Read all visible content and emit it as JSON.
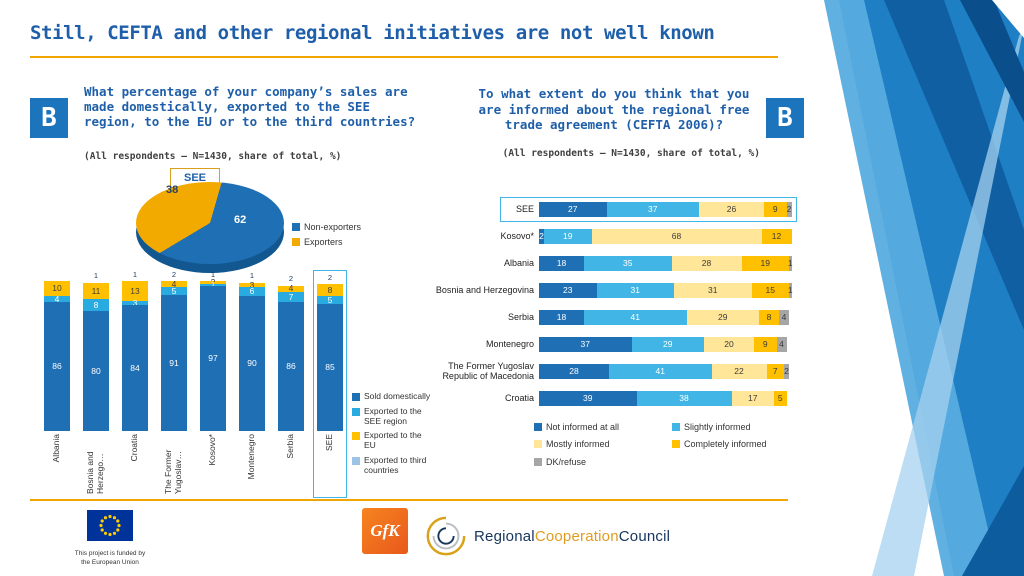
{
  "title": "Still, CEFTA and other regional initiatives are not well known",
  "badges": {
    "left": "B",
    "right": "B"
  },
  "left_panel": {
    "question": "What percentage of your company’s sales are made domestically, exported to the SEE region, to the EU or to the third countries?",
    "subtitle": "(All respondents – N=1430, share of total, %)",
    "see_tag": "SEE"
  },
  "right_panel": {
    "question": "To what extent do you think that you are informed about the regional free trade agreement (CEFTA 2006)?",
    "subtitle": "(All respondents – N=1430, share of total, %)"
  },
  "chart_data": [
    {
      "id": "see_exporters_pie",
      "type": "pie",
      "labels": [
        "Non-exporters",
        "Exporters"
      ],
      "values": [
        62,
        38
      ],
      "colors": [
        "#1F6FB5",
        "#F2A900"
      ],
      "title": "SEE",
      "legend_position": "right"
    },
    {
      "id": "sales_structure_by_country",
      "type": "bar",
      "stacked": true,
      "categories": [
        "Albania",
        "Bosnia and Herzego…",
        "Croatia",
        "The Former Yugoslav…",
        "Kosovo*",
        "Montenegro",
        "Serbia",
        "SEE"
      ],
      "series": [
        {
          "name": "Sold domestically",
          "color": "#1F6FB5",
          "values": [
            86,
            80,
            84,
            91,
            97,
            90,
            86,
            85
          ]
        },
        {
          "name": "Exported to the SEE region",
          "color": "#29ABE2",
          "values": [
            4,
            8,
            3,
            5,
            1,
            6,
            7,
            5
          ]
        },
        {
          "name": "Exported to the EU",
          "color": "#FFC000",
          "values": [
            10,
            11,
            13,
            4,
            2,
            3,
            4,
            8
          ]
        },
        {
          "name": "Exported to third countries",
          "color": "#9DC3E6",
          "values": [
            0,
            1,
            1,
            2,
            1,
            1,
            2,
            2
          ]
        }
      ],
      "ylim": [
        0,
        100
      ],
      "highlight_category": "SEE",
      "legend_position": "right"
    },
    {
      "id": "cefta_awareness_by_country",
      "type": "bar",
      "orientation": "horizontal",
      "stacked": true,
      "categories": [
        "SEE",
        "Kosovo*",
        "Albania",
        "Bosnia and Herzegovina",
        "Serbia",
        "Montenegro",
        "The Former Yugoslav Republic of Macedonia",
        "Croatia"
      ],
      "series": [
        {
          "name": "Not informed at all",
          "color": "#1F6FB5",
          "values": [
            27,
            2,
            18,
            23,
            18,
            37,
            28,
            39
          ]
        },
        {
          "name": "Slightly informed",
          "color": "#41B6E6",
          "values": [
            37,
            19,
            35,
            31,
            41,
            29,
            41,
            38
          ]
        },
        {
          "name": "Mostly informed",
          "color": "#FFE699",
          "values": [
            26,
            68,
            28,
            31,
            29,
            20,
            22,
            17
          ]
        },
        {
          "name": "Completely informed",
          "color": "#FFC000",
          "values": [
            9,
            12,
            19,
            15,
            8,
            9,
            7,
            5
          ]
        },
        {
          "name": "DK/refuse",
          "color": "#A6A6A6",
          "values": [
            2,
            0,
            1,
            1,
            4,
            4,
            2,
            0
          ]
        }
      ],
      "xlim": [
        0,
        100
      ],
      "highlight_category": "SEE",
      "legend_position": "bottom"
    }
  ],
  "footer": {
    "eu_caption_line1": "This project is funded by",
    "eu_caption_line2": "the European Union",
    "gfk": "GfK",
    "rcc": {
      "part1": "Regional",
      "part2": "Cooperation",
      "part3": "Council"
    }
  },
  "colors": {
    "title_blue": "#1F5FA9",
    "accent_orange": "#F0A500",
    "badge_blue": "#1C75BC",
    "highlight_border": "#41B6E6"
  }
}
